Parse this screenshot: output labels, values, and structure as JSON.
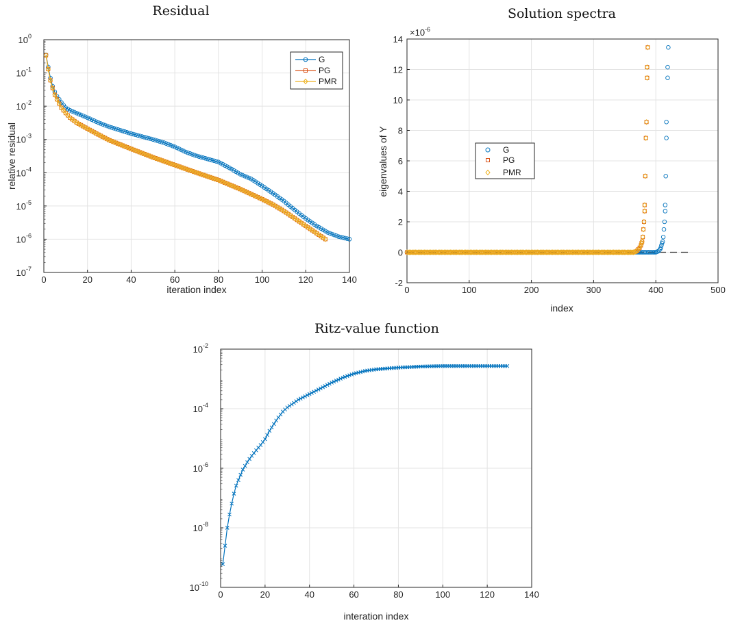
{
  "chart_data": [
    {
      "id": "residual",
      "type": "line",
      "title": "Residual",
      "xlabel": "iteration index",
      "ylabel": "relative residual",
      "xlim": [
        0,
        140
      ],
      "ylim": [
        1e-07,
        1
      ],
      "yscale": "log",
      "grid": true,
      "legend_position": "top-right",
      "xticks": [
        0,
        20,
        40,
        60,
        80,
        100,
        120,
        140
      ],
      "yticks": [
        {
          "base": "10",
          "exp": "-7",
          "value": 1e-07
        },
        {
          "base": "10",
          "exp": "-6",
          "value": 1e-06
        },
        {
          "base": "10",
          "exp": "-5",
          "value": 1e-05
        },
        {
          "base": "10",
          "exp": "-4",
          "value": 0.0001
        },
        {
          "base": "10",
          "exp": "-3",
          "value": 0.001
        },
        {
          "base": "10",
          "exp": "-2",
          "value": 0.01
        },
        {
          "base": "10",
          "exp": "-1",
          "value": 0.1
        },
        {
          "base": "10",
          "exp": "0",
          "value": 1
        }
      ],
      "series": [
        {
          "name": "G",
          "color": "#0072BD",
          "marker": "circle",
          "x": [
            1,
            2,
            3,
            4,
            5,
            6,
            8,
            10,
            12,
            15,
            20,
            25,
            30,
            40,
            50,
            55,
            60,
            65,
            70,
            80,
            85,
            90,
            95,
            100,
            105,
            110,
            115,
            120,
            125,
            130,
            135,
            140
          ],
          "y": [
            0.35,
            0.15,
            0.07,
            0.04,
            0.027,
            0.02,
            0.013,
            0.009,
            0.0075,
            0.0062,
            0.0045,
            0.0032,
            0.0024,
            0.0015,
            0.001,
            0.0008,
            0.0006,
            0.00042,
            0.00032,
            0.00021,
            0.00014,
            9e-05,
            6.5e-05,
            4e-05,
            2.4e-05,
            1.4e-05,
            7.5e-06,
            4.2e-06,
            2.5e-06,
            1.6e-06,
            1.2e-06,
            1e-06
          ]
        },
        {
          "name": "PG",
          "color": "#D95319",
          "marker": "square",
          "x": [
            1,
            2,
            3,
            4,
            5,
            6,
            8,
            10,
            12,
            15,
            20,
            25,
            30,
            40,
            50,
            60,
            70,
            80,
            90,
            100,
            105,
            110,
            115,
            120,
            125,
            129
          ],
          "y": [
            0.34,
            0.13,
            0.06,
            0.035,
            0.022,
            0.016,
            0.009,
            0.0062,
            0.0045,
            0.0032,
            0.0021,
            0.0014,
            0.00095,
            0.00052,
            0.00029,
            0.00017,
            0.0001,
            6e-05,
            3.2e-05,
            1.6e-05,
            1.1e-05,
            7e-06,
            4.2e-06,
            2.5e-06,
            1.5e-06,
            1e-06
          ]
        },
        {
          "name": "PMR",
          "color": "#EDB120",
          "marker": "hexagram",
          "x": [
            1,
            2,
            3,
            4,
            5,
            6,
            8,
            10,
            12,
            15,
            20,
            25,
            30,
            40,
            50,
            60,
            70,
            80,
            90,
            100,
            105,
            110,
            115,
            120,
            125,
            129
          ],
          "y": [
            0.34,
            0.13,
            0.06,
            0.035,
            0.022,
            0.016,
            0.009,
            0.0062,
            0.0045,
            0.0032,
            0.0021,
            0.0014,
            0.00095,
            0.00052,
            0.00029,
            0.00017,
            0.0001,
            6e-05,
            3.2e-05,
            1.6e-05,
            1.1e-05,
            7e-06,
            4.2e-06,
            2.5e-06,
            1.5e-06,
            1e-06
          ]
        }
      ]
    },
    {
      "id": "spectra",
      "type": "scatter",
      "title": "Solution spectra",
      "xlabel": "index",
      "ylabel": "eigenvalues of Y",
      "y_multiplier": "×10",
      "y_multiplier_exp": "-6",
      "xlim": [
        0,
        500
      ],
      "ylim": [
        -2,
        14
      ],
      "grid": true,
      "legend_position": "center-left",
      "xticks": [
        0,
        100,
        200,
        300,
        400,
        500
      ],
      "yticks": [
        -2,
        0,
        2,
        4,
        6,
        8,
        10,
        12,
        14
      ],
      "reference_line": {
        "y": 0,
        "x": [
          0,
          455
        ],
        "style": "dashed",
        "color": "#333333"
      },
      "series": [
        {
          "name": "G",
          "color": "#0072BD",
          "marker": "circle",
          "zero_run": [
            0,
            400
          ],
          "x": [
            401,
            403,
            405,
            407,
            408,
            409,
            410,
            411,
            412,
            413,
            414,
            415,
            415,
            416,
            417,
            417,
            419,
            419,
            420
          ],
          "y": [
            0.02,
            0.05,
            0.1,
            0.2,
            0.3,
            0.45,
            0.6,
            0.7,
            1.0,
            1.5,
            2.0,
            2.7,
            3.1,
            5.0,
            7.5,
            8.55,
            11.45,
            12.15,
            13.45
          ]
        },
        {
          "name": "PG",
          "color": "#D95319",
          "marker": "square",
          "zero_run": [
            0,
            365
          ],
          "x": [
            366,
            368,
            370,
            372,
            374,
            376,
            377,
            378,
            379,
            380,
            381,
            382,
            382,
            383,
            384,
            385,
            386,
            386,
            387
          ],
          "y": [
            0.02,
            0.05,
            0.1,
            0.2,
            0.3,
            0.45,
            0.6,
            0.7,
            1.0,
            1.5,
            2.0,
            2.7,
            3.1,
            5.0,
            7.5,
            8.55,
            11.45,
            12.15,
            13.45
          ]
        },
        {
          "name": "PMR",
          "color": "#EDB120",
          "marker": "hexagram",
          "zero_run": [
            0,
            365
          ],
          "x": [
            366,
            368,
            370,
            372,
            374,
            376,
            377,
            378,
            379,
            380,
            381,
            382,
            382,
            383,
            384,
            385,
            386,
            386,
            387
          ],
          "y": [
            0.02,
            0.05,
            0.1,
            0.2,
            0.3,
            0.45,
            0.6,
            0.7,
            1.0,
            1.5,
            2.0,
            2.7,
            3.1,
            5.0,
            7.5,
            8.55,
            11.45,
            12.15,
            13.45
          ]
        }
      ]
    },
    {
      "id": "ritz",
      "type": "line",
      "title": "Ritz-value function",
      "xlabel": "interation index",
      "ylabel": "",
      "xlim": [
        0,
        140
      ],
      "ylim": [
        1e-10,
        0.01
      ],
      "yscale": "log",
      "grid": true,
      "xticks": [
        0,
        20,
        40,
        60,
        80,
        100,
        120,
        140
      ],
      "yticks": [
        {
          "base": "10",
          "exp": "-10",
          "value": 1e-10
        },
        {
          "base": "10",
          "exp": "-8",
          "value": 1e-08
        },
        {
          "base": "10",
          "exp": "-6",
          "value": 1e-06
        },
        {
          "base": "10",
          "exp": "-4",
          "value": 0.0001
        },
        {
          "base": "10",
          "exp": "-2",
          "value": 0.01
        }
      ],
      "series": [
        {
          "name": "",
          "color": "#0072BD",
          "marker": "x",
          "x": [
            1,
            2,
            3,
            4,
            5,
            6,
            7,
            8,
            10,
            12,
            14,
            16,
            18,
            20,
            22,
            25,
            28,
            30,
            35,
            40,
            45,
            50,
            55,
            60,
            65,
            70,
            80,
            90,
            100,
            110,
            120,
            129
          ],
          "y": [
            6e-10,
            2.5e-09,
            1e-08,
            2.8e-08,
            6.5e-08,
            1.4e-07,
            2.6e-07,
            4e-07,
            9e-07,
            1.6e-06,
            2.6e-06,
            4e-06,
            6e-06,
            9.5e-06,
            1.8e-05,
            4e-05,
            8e-05,
            0.00011,
            0.0002,
            0.00031,
            0.00048,
            0.00075,
            0.0011,
            0.0015,
            0.00185,
            0.0021,
            0.0024,
            0.0026,
            0.0027,
            0.0027,
            0.0027,
            0.0027
          ]
        }
      ]
    }
  ]
}
